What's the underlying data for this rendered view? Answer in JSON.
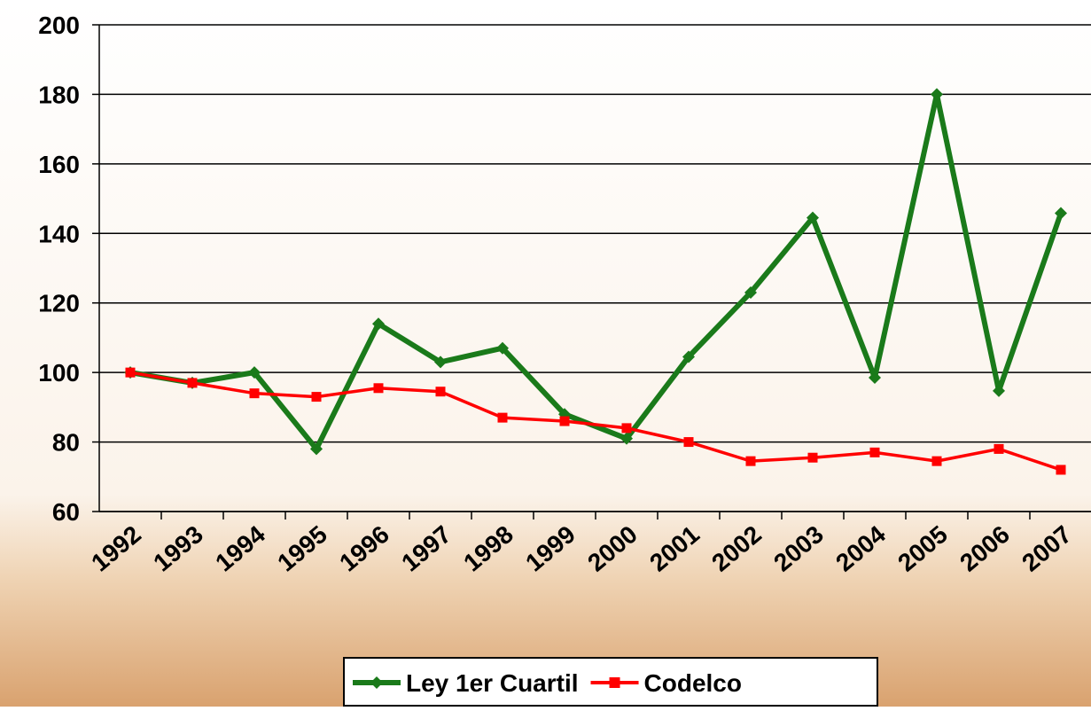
{
  "chart_data": {
    "type": "line",
    "categories": [
      "1992",
      "1993",
      "1994",
      "1995",
      "1996",
      "1997",
      "1998",
      "1999",
      "2000",
      "2001",
      "2002",
      "2003",
      "2004",
      "2005",
      "2006",
      "2007"
    ],
    "series": [
      {
        "name": "Ley 1er Cuartil",
        "color": "#1a7a1a",
        "marker": "diamond",
        "values": [
          100,
          97,
          100,
          78,
          114,
          103,
          107,
          88,
          81,
          104.5,
          123,
          144.5,
          98.5,
          180,
          94.7,
          145.8
        ]
      },
      {
        "name": "Codelco",
        "color": "#ff0000",
        "marker": "square",
        "values": [
          100,
          97,
          94,
          93,
          95.5,
          94.5,
          87,
          86,
          84,
          80,
          74.5,
          75.5,
          77,
          74.5,
          78,
          72
        ]
      }
    ],
    "ylim": [
      60,
      200
    ],
    "yticks": [
      60,
      80,
      100,
      120,
      140,
      160,
      180,
      200
    ],
    "grid": true,
    "legend": "bottom"
  }
}
